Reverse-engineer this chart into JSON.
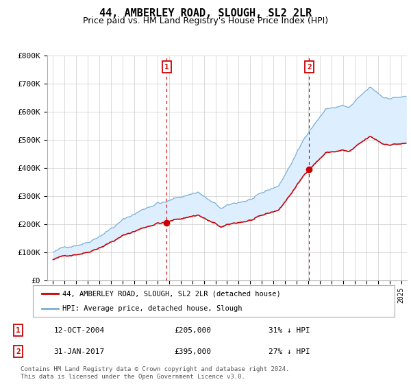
{
  "title": "44, AMBERLEY ROAD, SLOUGH, SL2 2LR",
  "subtitle": "Price paid vs. HM Land Registry's House Price Index (HPI)",
  "ylim": [
    0,
    800000
  ],
  "yticks": [
    0,
    100000,
    200000,
    300000,
    400000,
    500000,
    600000,
    700000,
    800000
  ],
  "ytick_labels": [
    "£0",
    "£100K",
    "£200K",
    "£300K",
    "£400K",
    "£500K",
    "£600K",
    "£700K",
    "£800K"
  ],
  "title_fontsize": 11,
  "subtitle_fontsize": 9,
  "legend_label_red": "44, AMBERLEY ROAD, SLOUGH, SL2 2LR (detached house)",
  "legend_label_blue": "HPI: Average price, detached house, Slough",
  "purchase1_date": 2004.79,
  "purchase1_price": 205000,
  "purchase1_label": "1",
  "purchase1_text": "12-OCT-2004",
  "purchase1_amount": "£205,000",
  "purchase1_hpi": "31% ↓ HPI",
  "purchase2_date": 2017.08,
  "purchase2_price": 395000,
  "purchase2_label": "2",
  "purchase2_text": "31-JAN-2017",
  "purchase2_amount": "£395,000",
  "purchase2_hpi": "27% ↓ HPI",
  "footer1": "Contains HM Land Registry data © Crown copyright and database right 2024.",
  "footer2": "This data is licensed under the Open Government Licence v3.0.",
  "line_color_red": "#cc0000",
  "line_color_blue": "#7aafd4",
  "fill_color": "#ddeeff",
  "bg_color": "#ffffff",
  "grid_color": "#cccccc",
  "vline_color": "#cc0000",
  "box_color": "#cc0000",
  "xmin": 1995.0,
  "xmax": 2025.5
}
